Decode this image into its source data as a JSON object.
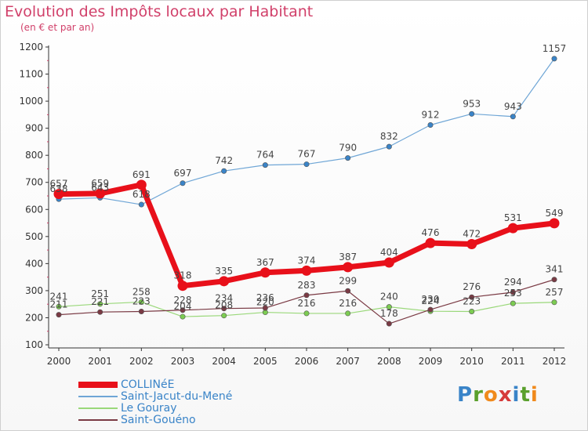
{
  "title": "Evolution des Impôts locaux par Habitant",
  "subtitle": "(en € et par an)",
  "logo": {
    "text": [
      "P",
      "r",
      "o",
      "x",
      "i",
      "t",
      "i"
    ],
    "colors": [
      "#3a84c8",
      "#5aa02c",
      "#f08a1c",
      "#d63a3a",
      "#3a84c8",
      "#5aa02c",
      "#f08a1c"
    ]
  },
  "chart_data": {
    "type": "line",
    "title": "Evolution des Impôts locaux par Habitant",
    "subtitle": "(en € et par an)",
    "categories": [
      "2000",
      "2001",
      "2002",
      "2003",
      "2004",
      "2005",
      "2006",
      "2007",
      "2008",
      "2009",
      "2010",
      "2011",
      "2012"
    ],
    "ylim": [
      100,
      1200
    ],
    "yticks": [
      100,
      200,
      300,
      400,
      500,
      600,
      700,
      800,
      900,
      1000,
      1100,
      1200
    ],
    "grid": false,
    "legend_position": "bottom-left",
    "series": [
      {
        "name": "COLLINéE",
        "color": "#e8101a",
        "width": 7,
        "values": [
          657,
          659,
          691,
          318,
          335,
          367,
          374,
          387,
          404,
          476,
          472,
          531,
          549
        ],
        "labels": [
          "657",
          "659",
          "691",
          "318",
          "335",
          "367",
          "374",
          "387",
          "404",
          "476",
          "472",
          "531",
          "549"
        ]
      },
      {
        "name": "Saint-Jacut-du-Mené",
        "color": "#6fa6d6",
        "width": 1.2,
        "marker": "#3a84c8",
        "values": [
          638,
          643,
          618,
          697,
          742,
          764,
          767,
          790,
          832,
          912,
          953,
          943,
          1157
        ],
        "labels": [
          "638",
          "643",
          "618",
          "697",
          "742",
          "764",
          "767",
          "790",
          "832",
          "912",
          "953",
          "943",
          "1157"
        ]
      },
      {
        "name": "Le Gouray",
        "color": "#9ad87a",
        "width": 1.2,
        "marker": "#7ccc52",
        "values": [
          241,
          251,
          258,
          204,
          208,
          220,
          216,
          216,
          240,
          224,
          223,
          253,
          257
        ],
        "labels": [
          "241",
          "251",
          "258",
          "204",
          "208",
          "220",
          "216",
          "216",
          "240",
          "224",
          "223",
          "253",
          "257"
        ]
      },
      {
        "name": "Saint-Gouéno",
        "color": "#7a3a44",
        "width": 1.2,
        "marker": "#7a3a44",
        "values": [
          211,
          221,
          223,
          228,
          234,
          236,
          283,
          299,
          178,
          230,
          276,
          294,
          341
        ],
        "labels": [
          "211",
          "221",
          "223",
          "228",
          "234",
          "236",
          "283",
          "299",
          "178",
          "230",
          "276",
          "294",
          "341"
        ]
      }
    ]
  }
}
